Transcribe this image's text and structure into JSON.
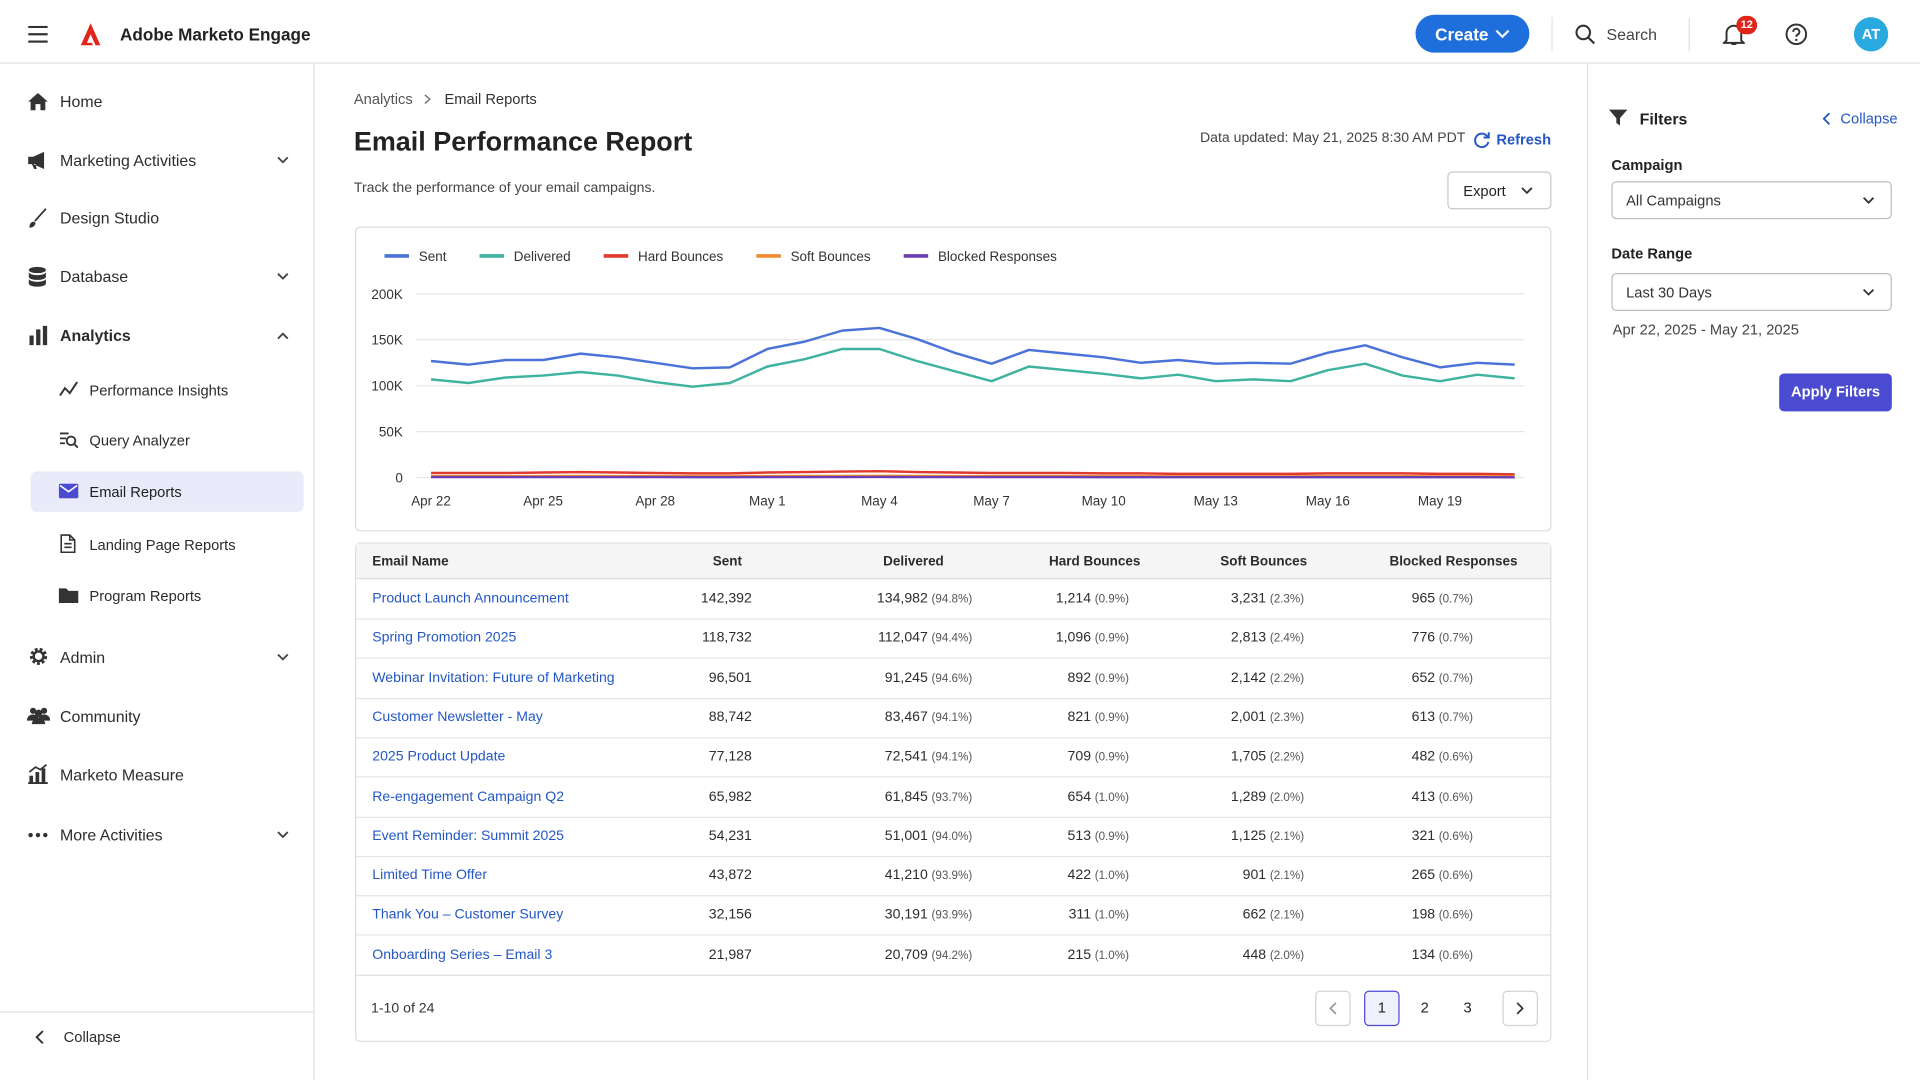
{
  "header": {
    "app_name": "Adobe Marketo Engage",
    "create": "Create",
    "search": "Search",
    "notifications": "12",
    "avatar": "AT"
  },
  "sidebar": {
    "items": [
      "Home",
      "Marketing Activities",
      "Design Studio",
      "Database",
      "Analytics"
    ],
    "analytics_items": [
      "Performance Insights",
      "Query Analyzer",
      "Email Reports",
      "Landing Page Reports",
      "Program Reports"
    ],
    "lower_items": [
      "Admin",
      "Community",
      "Marketo Measure",
      "More Activities"
    ],
    "collapse": "Collapse"
  },
  "breadcrumb": [
    "Analytics",
    "Email Reports"
  ],
  "page": {
    "title": "Email Performance Report",
    "subtitle": "Track the performance of your email campaigns.",
    "data_updated": "Data updated: May 21, 2025 8:30 AM PDT",
    "refresh": "Refresh",
    "export": "Export"
  },
  "chart_data": {
    "type": "line",
    "legend": "top-left",
    "grid": true,
    "categories": [
      "Apr 22",
      null,
      null,
      "Apr 25",
      null,
      null,
      "Apr 28",
      null,
      null,
      "May 1",
      null,
      null,
      "May 4",
      null,
      null,
      "May 7",
      null,
      null,
      "May 10",
      null,
      null,
      "May 13",
      null,
      null,
      "May 16",
      null,
      null,
      "May 19",
      null,
      null
    ],
    "ylim": [
      0,
      200000
    ],
    "yticks": [
      0,
      {
        "value": 50000,
        "label": "50K"
      },
      {
        "value": 100000,
        "label": "100K"
      },
      {
        "value": 150000,
        "label": "150K"
      },
      {
        "value": 200000,
        "label": "200K"
      }
    ],
    "series": [
      {
        "name": "Sent",
        "color": "#4a72d9",
        "values": [
          127000,
          123000,
          128000,
          128000,
          135000,
          131000,
          125000,
          119000,
          120000,
          140000,
          148000,
          160000,
          163000,
          151000,
          136000,
          124000,
          139000,
          135000,
          131000,
          125000,
          128000,
          124000,
          125000,
          124000,
          136000,
          144000,
          131000,
          120000,
          125000,
          123000
        ]
      },
      {
        "name": "Delivered",
        "color": "#3fb39f",
        "values": [
          107000,
          103000,
          109000,
          111000,
          115000,
          111000,
          104000,
          99000,
          103000,
          121000,
          129000,
          140000,
          140000,
          127000,
          116000,
          105000,
          121000,
          117000,
          113000,
          108000,
          112000,
          105000,
          107000,
          105000,
          117000,
          124000,
          111000,
          105000,
          112000,
          108000
        ]
      },
      {
        "name": "Hard Bounces",
        "color": "#e03a2f",
        "values": [
          5000,
          5000,
          5000,
          5500,
          6000,
          5500,
          5000,
          4500,
          4500,
          5500,
          6000,
          6500,
          7000,
          6000,
          5500,
          5000,
          5000,
          5000,
          4500,
          4500,
          4000,
          4000,
          4000,
          4000,
          4500,
          4500,
          4500,
          4000,
          4000,
          3500
        ]
      },
      {
        "name": "Soft Bounces",
        "color": "#f08c2d",
        "values": [
          1500,
          1500,
          1500,
          1600,
          1700,
          1600,
          1500,
          1400,
          1400,
          1600,
          1700,
          1800,
          1900,
          1700,
          1600,
          1500,
          1500,
          1500,
          1400,
          1400,
          1300,
          1300,
          1300,
          1300,
          1400,
          1400,
          1400,
          1300,
          1300,
          1200
        ]
      },
      {
        "name": "Blocked Responses",
        "color": "#6a3fb5",
        "values": [
          500,
          500,
          500,
          500,
          600,
          500,
          500,
          400,
          400,
          500,
          600,
          600,
          700,
          600,
          500,
          500,
          500,
          500,
          400,
          400,
          400,
          400,
          400,
          400,
          400,
          400,
          400,
          400,
          400,
          300
        ]
      }
    ]
  },
  "table": {
    "columns": [
      "Email Name",
      "Sent",
      "Delivered",
      "Hard Bounces",
      "Soft Bounces",
      "Blocked Responses"
    ],
    "rows": [
      [
        "Product Launch Announcement",
        "142,392",
        "134,982",
        "(94.8%)",
        "1,214",
        "(0.9%)",
        "3,231",
        "(2.3%)",
        "965",
        "(0.7%)"
      ],
      [
        "Spring Promotion 2025",
        "118,732",
        "112,047",
        "(94.4%)",
        "1,096",
        "(0.9%)",
        "2,813",
        "(2.4%)",
        "776",
        "(0.7%)"
      ],
      [
        "Webinar Invitation: Future of Marketing",
        "96,501",
        "91,245",
        "(94.6%)",
        "892",
        "(0.9%)",
        "2,142",
        "(2.2%)",
        "652",
        "(0.7%)"
      ],
      [
        "Customer Newsletter - May",
        "88,742",
        "83,467",
        "(94.1%)",
        "821",
        "(0.9%)",
        "2,001",
        "(2.3%)",
        "613",
        "(0.7%)"
      ],
      [
        "2025 Product Update",
        "77,128",
        "72,541",
        "(94.1%)",
        "709",
        "(0.9%)",
        "1,705",
        "(2.2%)",
        "482",
        "(0.6%)"
      ],
      [
        "Re-engagement Campaign Q2",
        "65,982",
        "61,845",
        "(93.7%)",
        "654",
        "(1.0%)",
        "1,289",
        "(2.0%)",
        "413",
        "(0.6%)"
      ],
      [
        "Event Reminder: Summit 2025",
        "54,231",
        "51,001",
        "(94.0%)",
        "513",
        "(0.9%)",
        "1,125",
        "(2.1%)",
        "321",
        "(0.6%)"
      ],
      [
        "Limited Time Offer",
        "43,872",
        "41,210",
        "(93.9%)",
        "422",
        "(1.0%)",
        "901",
        "(2.1%)",
        "265",
        "(0.6%)"
      ],
      [
        "Thank You – Customer Survey",
        "32,156",
        "30,191",
        "(93.9%)",
        "311",
        "(1.0%)",
        "662",
        "(2.1%)",
        "198",
        "(0.6%)"
      ],
      [
        "Onboarding Series – Email 3",
        "21,987",
        "20,709",
        "(94.2%)",
        "215",
        "(1.0%)",
        "448",
        "(2.0%)",
        "134",
        "(0.6%)"
      ]
    ]
  },
  "pagination": {
    "summary": "1-10 of 24",
    "pages": [
      "1",
      "2",
      "3"
    ]
  },
  "filters": {
    "title": "Filters",
    "collapse": "Collapse",
    "campaign_label": "Campaign",
    "campaign_value": "All Campaigns",
    "date_range_label": "Date Range",
    "date_range_value": "Last 30 Days",
    "date_range_text": "Apr 22, 2025 - May 21, 2025",
    "apply": "Apply Filters"
  }
}
